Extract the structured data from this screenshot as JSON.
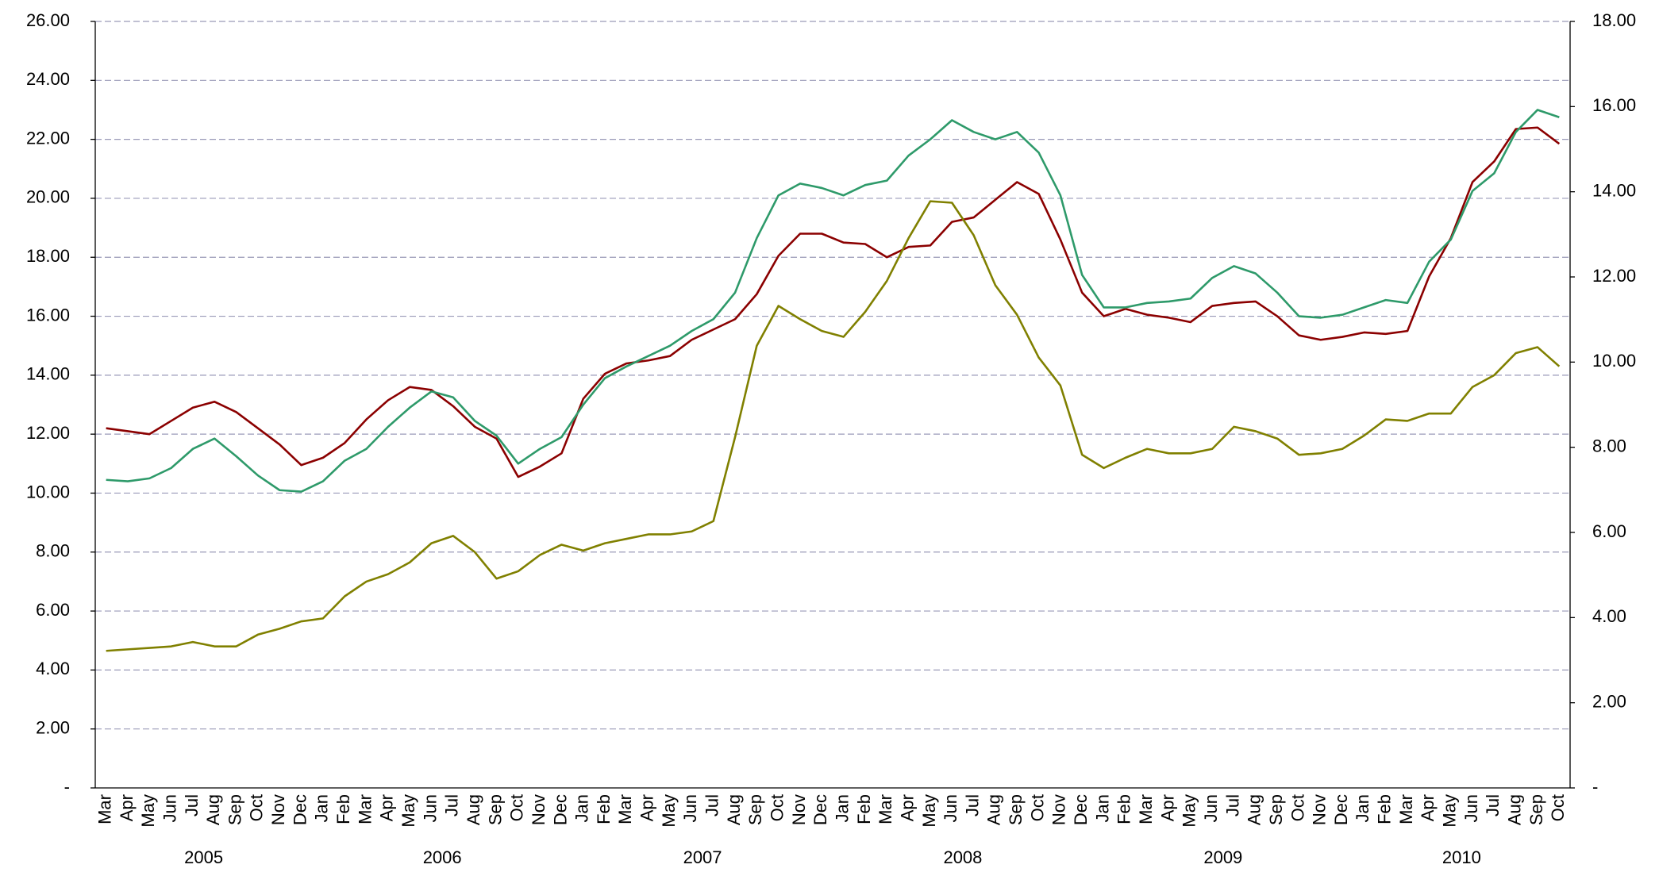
{
  "chart_data": {
    "type": "line",
    "categories": [
      "Mar",
      "Apr",
      "May",
      "Jun",
      "Jul",
      "Aug",
      "Sep",
      "Oct",
      "Nov",
      "Dec",
      "Jan",
      "Feb",
      "Mar",
      "Apr",
      "May",
      "Jun",
      "Jul",
      "Aug",
      "Sep",
      "Oct",
      "Nov",
      "Dec",
      "Jan",
      "Feb",
      "Mar",
      "Apr",
      "May",
      "Jun",
      "Jul",
      "Aug",
      "Sep",
      "Oct",
      "Nov",
      "Dec",
      "Jan",
      "Feb",
      "Mar",
      "Apr",
      "May",
      "Jun",
      "Jul",
      "Aug",
      "Sep",
      "Oct",
      "Nov",
      "Dec",
      "Jan",
      "Feb",
      "Mar",
      "Apr",
      "May",
      "Jun",
      "Jul",
      "Aug",
      "Sep",
      "Oct",
      "Nov",
      "Dec",
      "Jan",
      "Feb",
      "Mar",
      "Apr",
      "May",
      "Jun",
      "Jul",
      "Aug",
      "Sep",
      "Oct"
    ],
    "category_groups": [
      {
        "label": "2005",
        "count": 10
      },
      {
        "label": "2006",
        "count": 12
      },
      {
        "label": "2007",
        "count": 12
      },
      {
        "label": "2008",
        "count": 12
      },
      {
        "label": "2009",
        "count": 12
      },
      {
        "label": "2010",
        "count": 10
      }
    ],
    "series": [
      {
        "color": "#8b0000",
        "values": [
          12.2,
          12.1,
          12.0,
          12.45,
          12.9,
          13.1,
          12.75,
          12.2,
          11.65,
          10.95,
          11.2,
          11.7,
          12.5,
          13.15,
          13.6,
          13.5,
          12.95,
          12.25,
          11.85,
          10.55,
          10.9,
          11.35,
          13.2,
          14.05,
          14.4,
          14.5,
          14.65,
          15.2,
          15.55,
          15.9,
          16.75,
          18.05,
          18.8,
          18.8,
          18.5,
          18.45,
          18.0,
          18.35,
          18.4,
          19.2,
          19.35,
          19.95,
          20.55,
          20.15,
          18.6,
          16.8,
          16.0,
          16.25,
          16.05,
          15.95,
          15.8,
          16.35,
          16.45,
          16.5,
          16.0,
          15.35,
          15.2,
          15.3,
          15.45,
          15.4,
          15.5,
          17.35,
          18.65,
          20.55,
          21.25,
          22.35,
          22.4,
          21.85
        ]
      },
      {
        "color": "#2e9a6a",
        "values": [
          10.45,
          10.4,
          10.5,
          10.85,
          11.5,
          11.85,
          11.25,
          10.6,
          10.1,
          10.05,
          10.4,
          11.1,
          11.5,
          12.25,
          12.9,
          13.45,
          13.25,
          12.45,
          11.95,
          11.0,
          11.5,
          11.9,
          13.0,
          13.9,
          14.3,
          14.65,
          15.0,
          15.5,
          15.9,
          16.8,
          18.65,
          20.1,
          20.5,
          20.35,
          20.1,
          20.45,
          20.6,
          21.45,
          22.0,
          22.65,
          22.25,
          22.0,
          22.25,
          21.55,
          20.1,
          17.4,
          16.3,
          16.3,
          16.45,
          16.5,
          16.6,
          17.3,
          17.7,
          17.45,
          16.8,
          16.0,
          15.95,
          16.05,
          16.3,
          16.55,
          16.45,
          17.85,
          18.6,
          20.25,
          20.85,
          22.25,
          23.0,
          22.75
        ]
      },
      {
        "color": "#808000",
        "values": [
          4.65,
          4.7,
          4.75,
          4.8,
          4.95,
          4.8,
          4.8,
          5.2,
          5.4,
          5.65,
          5.75,
          6.5,
          7.0,
          7.25,
          7.65,
          8.3,
          8.55,
          8.0,
          7.1,
          7.35,
          7.9,
          8.25,
          8.05,
          8.3,
          8.45,
          8.6,
          8.6,
          8.7,
          9.05,
          11.9,
          15.0,
          16.35,
          15.9,
          15.5,
          15.3,
          16.15,
          17.2,
          18.65,
          19.9,
          19.85,
          18.75,
          17.05,
          16.05,
          14.6,
          13.65,
          11.3,
          10.85,
          11.2,
          11.5,
          11.35,
          11.35,
          11.5,
          12.25,
          12.1,
          11.85,
          11.3,
          11.35,
          11.5,
          11.95,
          12.5,
          12.45,
          12.7,
          12.7,
          13.6,
          14.0,
          14.75,
          14.95,
          14.3
        ]
      }
    ],
    "ylim": [
      0,
      26
    ],
    "yticks": [
      {
        "value": 0,
        "label": "-"
      },
      {
        "value": 2,
        "label": "2.00"
      },
      {
        "value": 4,
        "label": "4.00"
      },
      {
        "value": 6,
        "label": "6.00"
      },
      {
        "value": 8,
        "label": "8.00"
      },
      {
        "value": 10,
        "label": "10.00"
      },
      {
        "value": 12,
        "label": "12.00"
      },
      {
        "value": 14,
        "label": "14.00"
      },
      {
        "value": 16,
        "label": "16.00"
      },
      {
        "value": 18,
        "label": "18.00"
      },
      {
        "value": 20,
        "label": "20.00"
      },
      {
        "value": 22,
        "label": "22.00"
      },
      {
        "value": 24,
        "label": "24.00"
      },
      {
        "value": 26,
        "label": "26.00"
      }
    ],
    "y2lim": [
      0,
      18
    ],
    "y2ticks": [
      {
        "value": 0,
        "label": "-"
      },
      {
        "value": 2,
        "label": "2.00"
      },
      {
        "value": 4,
        "label": "4.00"
      },
      {
        "value": 6,
        "label": "6.00"
      },
      {
        "value": 8,
        "label": "8.00"
      },
      {
        "value": 10,
        "label": "10.00"
      },
      {
        "value": 12,
        "label": "12.00"
      },
      {
        "value": 14,
        "label": "14.00"
      },
      {
        "value": 16,
        "label": "16.00"
      },
      {
        "value": 18,
        "label": "18.00"
      }
    ],
    "grid": true
  }
}
